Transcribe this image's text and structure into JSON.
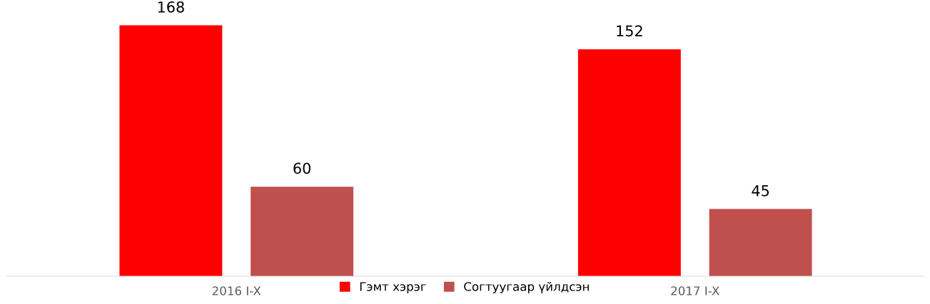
{
  "chart_data": {
    "type": "bar",
    "categories": [
      "2016 I-X",
      "2017 I-X"
    ],
    "series": [
      {
        "name": "Гэмт хэрэг",
        "color": "#ff0000",
        "values": [
          168,
          152
        ]
      },
      {
        "name": "Согтуугаар үйлдсэн",
        "color": "#c0504d",
        "values": [
          60,
          45
        ]
      }
    ],
    "data_labels": true,
    "legend": "bottom",
    "grid": false
  }
}
